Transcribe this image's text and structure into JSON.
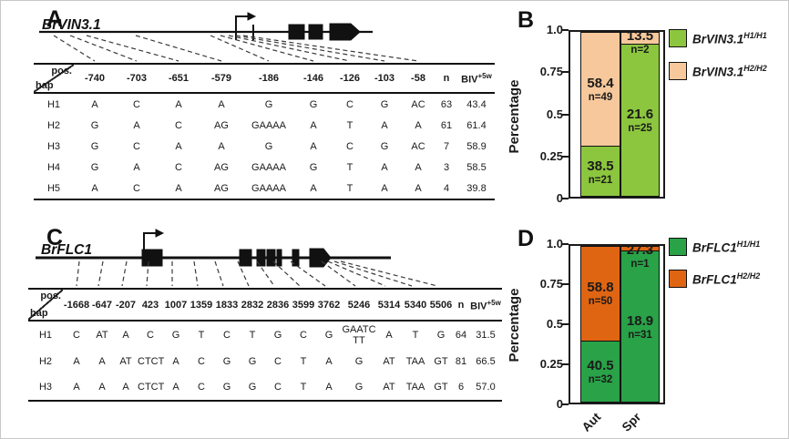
{
  "panels": {
    "A": {
      "label": "A",
      "gene": "BrVIN3.1"
    },
    "B": {
      "label": "B"
    },
    "C": {
      "label": "C",
      "gene": "BrFLC1"
    },
    "D": {
      "label": "D"
    }
  },
  "table_a": {
    "corner": {
      "top": "pos.",
      "bottom": "hap"
    },
    "positions": [
      "-740",
      "-703",
      "-651",
      "-579",
      "-186",
      "-146",
      "-126",
      "-103",
      "-58"
    ],
    "n_header": "n",
    "biv_header": {
      "base": "BIV",
      "sup": "+5w"
    },
    "rows": [
      {
        "hap": "H1",
        "alleles": [
          "A",
          "C",
          "A",
          "A",
          "G",
          "G",
          "C",
          "G",
          "AC"
        ],
        "n": "63",
        "biv": "43.4"
      },
      {
        "hap": "H2",
        "alleles": [
          "G",
          "A",
          "C",
          "AG",
          "GAAAA",
          "A",
          "T",
          "A",
          "A"
        ],
        "n": "61",
        "biv": "61.4"
      },
      {
        "hap": "H3",
        "alleles": [
          "G",
          "C",
          "A",
          "A",
          "G",
          "A",
          "C",
          "G",
          "AC"
        ],
        "n": "7",
        "biv": "58.9"
      },
      {
        "hap": "H4",
        "alleles": [
          "G",
          "A",
          "C",
          "AG",
          "GAAAA",
          "G",
          "T",
          "A",
          "A"
        ],
        "n": "3",
        "biv": "58.5"
      },
      {
        "hap": "H5",
        "alleles": [
          "A",
          "C",
          "A",
          "AG",
          "GAAAA",
          "A",
          "T",
          "A",
          "A"
        ],
        "n": "4",
        "biv": "39.8"
      }
    ]
  },
  "table_c": {
    "corner": {
      "top": "pos.",
      "bottom": "hap"
    },
    "positions": [
      "-1668",
      "-647",
      "-207",
      "423",
      "1007",
      "1359",
      "1833",
      "2832",
      "2836",
      "3599",
      "3762",
      "5246",
      "5314",
      "5340",
      "5506"
    ],
    "n_header": "n",
    "biv_header": {
      "base": "BIV",
      "sup": "+5w"
    },
    "rows": [
      {
        "hap": "H1",
        "alleles": [
          "C",
          "AT",
          "A",
          "C",
          "G",
          "T",
          "C",
          "T",
          "G",
          "C",
          "G",
          "GAATC\nTT",
          "A",
          "T",
          "G"
        ],
        "n": "64",
        "biv": "31.5"
      },
      {
        "hap": "H2",
        "alleles": [
          "A",
          "A",
          "AT",
          "CTCT",
          "A",
          "C",
          "G",
          "G",
          "C",
          "T",
          "A",
          "G",
          "AT",
          "TAA",
          "GT"
        ],
        "n": "81",
        "biv": "66.5"
      },
      {
        "hap": "H3",
        "alleles": [
          "A",
          "A",
          "A",
          "CTCT",
          "A",
          "C",
          "G",
          "G",
          "C",
          "T",
          "A",
          "G",
          "AT",
          "TAA",
          "GT"
        ],
        "n": "6",
        "biv": "57.0"
      }
    ]
  },
  "chart_data": [
    {
      "panel": "B",
      "type": "bar",
      "stacked": true,
      "ylabel": "Percentage",
      "ylim": [
        0,
        1
      ],
      "yticks": [
        {
          "label": "1.0",
          "value": 1.0
        },
        {
          "label": "0.75",
          "value": 0.75
        },
        {
          "label": "0.5",
          "value": 0.5
        },
        {
          "label": "0.25",
          "value": 0.25
        },
        {
          "label": "0",
          "value": 0
        }
      ],
      "categories": [
        "Aut",
        "Spr"
      ],
      "show_x_labels": false,
      "series": [
        {
          "name": "BrVIN3.1 H1/H1",
          "color": "#8cc63e",
          "fractions": [
            0.3,
            0.93
          ],
          "counts": [
            21,
            25
          ],
          "value_labels": [
            "38.5",
            "21.6"
          ],
          "n_labels": [
            "n=21",
            "n=25"
          ]
        },
        {
          "name": "BrVIN3.1 H2/H2",
          "color": "#f6c89b",
          "fractions": [
            0.7,
            0.07
          ],
          "counts": [
            49,
            2
          ],
          "value_labels": [
            "58.4",
            "13.5"
          ],
          "n_labels": [
            "n=49",
            "n=2"
          ]
        }
      ],
      "legend": [
        {
          "base": "BrVIN3.1",
          "sup": "H1/H1",
          "color": "#8cc63e"
        },
        {
          "base": "BrVIN3.1",
          "sup": "H2/H2",
          "color": "#f6c89b"
        }
      ],
      "legend_position": "right"
    },
    {
      "panel": "D",
      "type": "bar",
      "stacked": true,
      "ylabel": "Percentage",
      "ylim": [
        0,
        1
      ],
      "yticks": [
        {
          "label": "1.0",
          "value": 1.0
        },
        {
          "label": "0.75",
          "value": 0.75
        },
        {
          "label": "0.5",
          "value": 0.5
        },
        {
          "label": "0.25",
          "value": 0.25
        },
        {
          "label": "0",
          "value": 0
        }
      ],
      "categories": [
        "Aut",
        "Spr"
      ],
      "show_x_labels": true,
      "series": [
        {
          "name": "BrFLC1 H1/H1",
          "color": "#29a248",
          "fractions": [
            0.39,
            0.97
          ],
          "counts": [
            32,
            31
          ],
          "value_labels": [
            "40.5",
            "18.9"
          ],
          "n_labels": [
            "n=32",
            "n=31"
          ]
        },
        {
          "name": "BrFLC1 H2/H2",
          "color": "#df6513",
          "fractions": [
            0.61,
            0.03
          ],
          "counts": [
            50,
            1
          ],
          "value_labels": [
            "58.8",
            "27.3"
          ],
          "n_labels": [
            "n=50",
            "n=1"
          ]
        }
      ],
      "legend": [
        {
          "base": "BrFLC1",
          "sup": "H1/H1",
          "color": "#29a248"
        },
        {
          "base": "BrFLC1",
          "sup": "H2/H2",
          "color": "#df6513"
        }
      ],
      "legend_position": "right"
    }
  ]
}
